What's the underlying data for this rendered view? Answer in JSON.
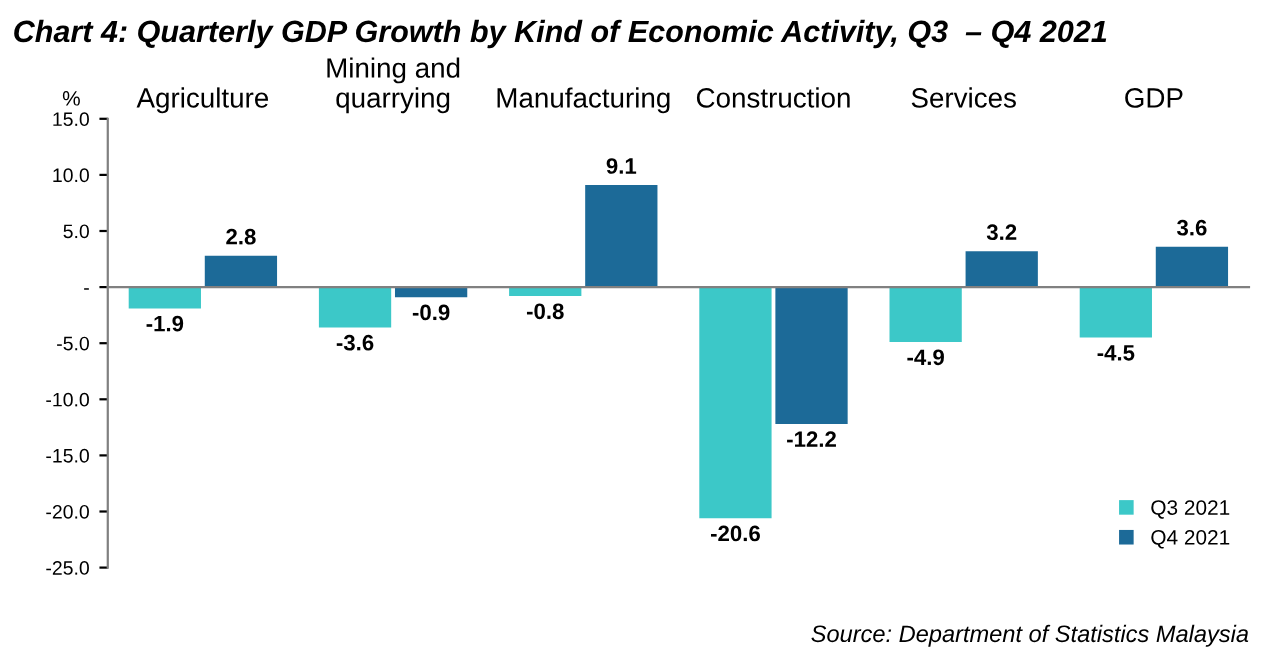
{
  "chart_data": {
    "type": "bar",
    "title": "Chart 4: Quarterly GDP Growth by Kind of Economic Activity, Q3  – Q4 2021",
    "ylabel": "%",
    "categories": [
      "Agriculture",
      "Mining and\nquarrying",
      "Manufacturing",
      "Construction",
      "Services",
      "GDP"
    ],
    "series": [
      {
        "name": "Q3 2021",
        "color": "#3cc8c8",
        "values": [
          -1.9,
          -3.6,
          -0.8,
          -20.6,
          -4.9,
          -4.5
        ]
      },
      {
        "name": "Q4 2021",
        "color": "#1c6a98",
        "values": [
          2.8,
          -0.9,
          9.1,
          -12.2,
          3.2,
          3.6
        ]
      }
    ],
    "ylim": [
      -25,
      15
    ],
    "yticks": [
      {
        "value": 15,
        "label": "15.0"
      },
      {
        "value": 10,
        "label": "10.0"
      },
      {
        "value": 5,
        "label": "5.0"
      },
      {
        "value": 0,
        "label": "-"
      },
      {
        "value": -5,
        "label": "-5.0"
      },
      {
        "value": -10,
        "label": "-10.0"
      },
      {
        "value": -15,
        "label": "-15.0"
      },
      {
        "value": -20,
        "label": "-20.0"
      },
      {
        "value": -25,
        "label": "-25.0"
      }
    ],
    "legend": "bottom right",
    "data_labels": true,
    "annotations": [
      "Source: Department of Statistics Malaysia"
    ]
  }
}
